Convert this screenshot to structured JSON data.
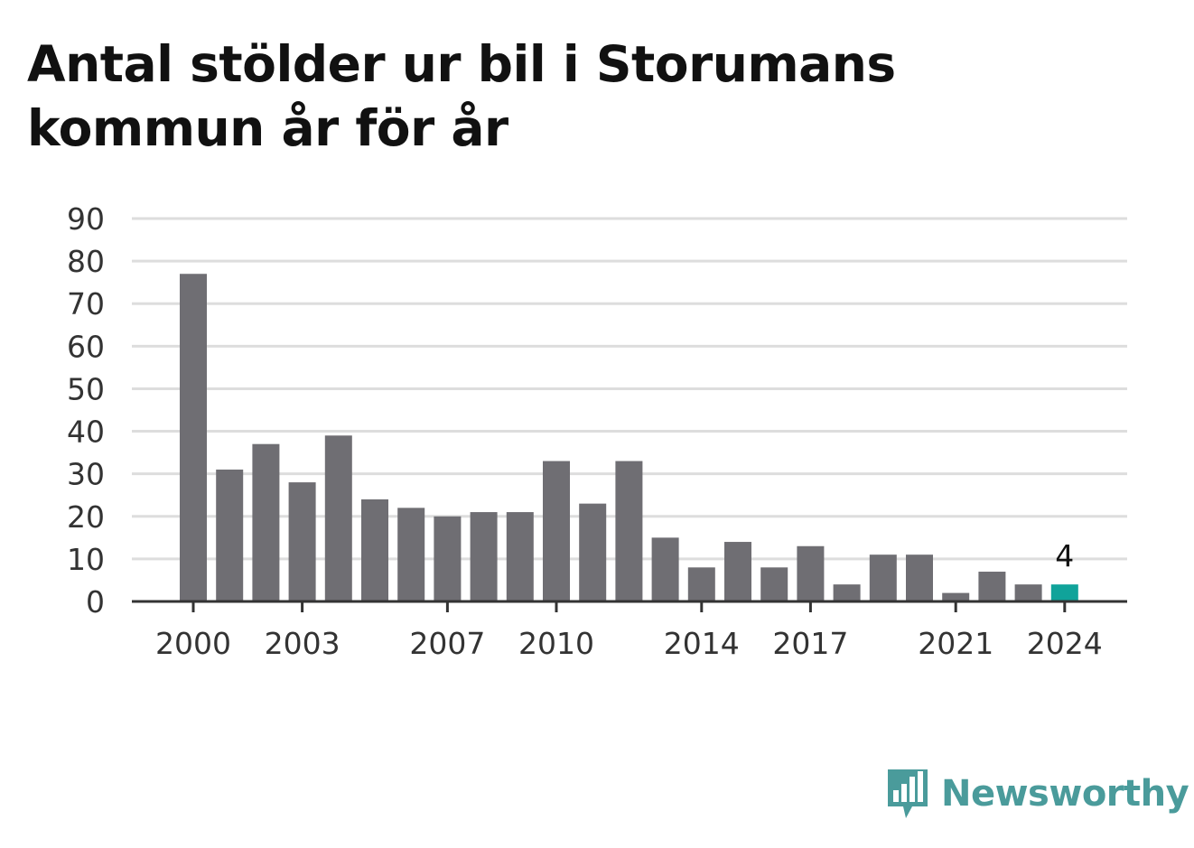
{
  "title": "Antal stölder ur bil i Storumans kommun år för år",
  "brand": {
    "name": "Newsworthy",
    "logo_icon": "bar-chart-speech-bubble-icon"
  },
  "colors": {
    "bar": "#6f6e73",
    "highlight": "#10a39a",
    "grid": "#dddddd",
    "axis": "#333333",
    "brand": "#4a9b9b"
  },
  "chart_data": {
    "type": "bar",
    "title": "Antal stölder ur bil i Storumans kommun år för år",
    "xlabel": "",
    "ylabel": "",
    "categories": [
      "2000",
      "2001",
      "2002",
      "2003",
      "2004",
      "2005",
      "2006",
      "2007",
      "2008",
      "2009",
      "2010",
      "2011",
      "2012",
      "2013",
      "2014",
      "2015",
      "2016",
      "2017",
      "2018",
      "2019",
      "2020",
      "2021",
      "2022",
      "2023",
      "2024"
    ],
    "values": [
      77,
      31,
      37,
      28,
      39,
      24,
      22,
      20,
      21,
      21,
      33,
      23,
      33,
      15,
      8,
      14,
      8,
      13,
      4,
      11,
      11,
      2,
      7,
      4,
      4
    ],
    "highlight_index": 24,
    "data_labels": [
      {
        "category": "2024",
        "text": "4"
      }
    ],
    "x_tick_labels": [
      "2000",
      "2003",
      "2007",
      "2010",
      "2014",
      "2017",
      "2021",
      "2024"
    ],
    "y_ticks": [
      0,
      10,
      20,
      30,
      40,
      50,
      60,
      70,
      80,
      90
    ],
    "ylim": [
      0,
      90
    ],
    "grid": true,
    "legend": "none"
  }
}
